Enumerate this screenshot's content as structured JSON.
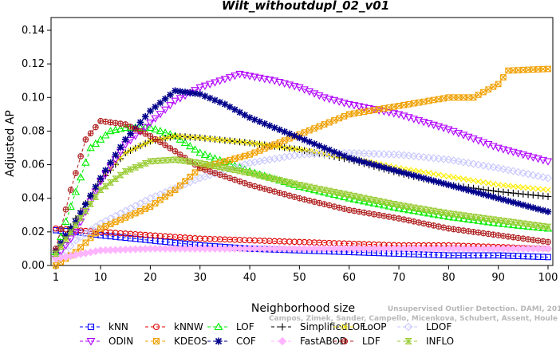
{
  "chart_data": {
    "type": "line",
    "title": "Wilt_withoutdupl_02_v01",
    "xlabel": "Neighborhood size",
    "ylabel": "Adjusted AP",
    "xlim": [
      1,
      100
    ],
    "ylim": [
      0,
      0.14
    ],
    "xticks": [
      1,
      10,
      20,
      30,
      40,
      50,
      60,
      70,
      80,
      90,
      100
    ],
    "yticks": [
      "0.00",
      "0.02",
      "0.04",
      "0.06",
      "0.08",
      "0.10",
      "0.12",
      "0.14"
    ],
    "watermark": [
      "Campos, Zimek, Sander, Campello, Micenkova, Schubert, Assent, Houle",
      "Unsupervised Outlier Detection. DAMI, 2015."
    ],
    "series": [
      {
        "name": "kNN",
        "color": "#0000ff",
        "marker": "square",
        "points": [
          [
            1,
            0.021
          ],
          [
            5,
            0.02
          ],
          [
            10,
            0.018
          ],
          [
            20,
            0.015
          ],
          [
            30,
            0.012
          ],
          [
            40,
            0.01
          ],
          [
            50,
            0.009
          ],
          [
            60,
            0.008
          ],
          [
            70,
            0.007
          ],
          [
            80,
            0.006
          ],
          [
            90,
            0.006
          ],
          [
            100,
            0.005
          ]
        ]
      },
      {
        "name": "kNNW",
        "color": "#e00000",
        "marker": "circle",
        "points": [
          [
            1,
            0.022
          ],
          [
            5,
            0.021
          ],
          [
            10,
            0.02
          ],
          [
            20,
            0.018
          ],
          [
            30,
            0.016
          ],
          [
            40,
            0.015
          ],
          [
            50,
            0.014
          ],
          [
            60,
            0.013
          ],
          [
            70,
            0.012
          ],
          [
            80,
            0.012
          ],
          [
            90,
            0.011
          ],
          [
            100,
            0.01
          ]
        ]
      },
      {
        "name": "LOF",
        "color": "#00ee00",
        "marker": "triangle",
        "points": [
          [
            1,
            0.008
          ],
          [
            4,
            0.035
          ],
          [
            8,
            0.07
          ],
          [
            12,
            0.08
          ],
          [
            15,
            0.082
          ],
          [
            20,
            0.082
          ],
          [
            25,
            0.077
          ],
          [
            30,
            0.067
          ],
          [
            40,
            0.056
          ],
          [
            50,
            0.047
          ],
          [
            60,
            0.04
          ],
          [
            70,
            0.034
          ],
          [
            80,
            0.029
          ],
          [
            90,
            0.025
          ],
          [
            100,
            0.022
          ]
        ]
      },
      {
        "name": "SimplifiedLOF",
        "color": "#000000",
        "marker": "plus",
        "points": [
          [
            1,
            0.008
          ],
          [
            5,
            0.028
          ],
          [
            10,
            0.05
          ],
          [
            15,
            0.067
          ],
          [
            20,
            0.074
          ],
          [
            25,
            0.077
          ],
          [
            30,
            0.076
          ],
          [
            40,
            0.073
          ],
          [
            50,
            0.069
          ],
          [
            60,
            0.063
          ],
          [
            70,
            0.055
          ],
          [
            80,
            0.048
          ],
          [
            90,
            0.044
          ],
          [
            100,
            0.041
          ]
        ]
      },
      {
        "name": "LoOP",
        "color": "#ffee00",
        "marker": "x",
        "points": [
          [
            1,
            0.007
          ],
          [
            5,
            0.026
          ],
          [
            10,
            0.052
          ],
          [
            15,
            0.067
          ],
          [
            20,
            0.074
          ],
          [
            25,
            0.077
          ],
          [
            30,
            0.076
          ],
          [
            40,
            0.073
          ],
          [
            50,
            0.069
          ],
          [
            60,
            0.064
          ],
          [
            70,
            0.058
          ],
          [
            80,
            0.053
          ],
          [
            90,
            0.048
          ],
          [
            100,
            0.045
          ]
        ]
      },
      {
        "name": "LDOF",
        "color": "#c8c8ff",
        "marker": "diamond",
        "points": [
          [
            1,
            0.002
          ],
          [
            5,
            0.015
          ],
          [
            10,
            0.025
          ],
          [
            20,
            0.04
          ],
          [
            30,
            0.052
          ],
          [
            40,
            0.061
          ],
          [
            50,
            0.066
          ],
          [
            60,
            0.067
          ],
          [
            70,
            0.066
          ],
          [
            80,
            0.063
          ],
          [
            90,
            0.058
          ],
          [
            100,
            0.052
          ]
        ]
      },
      {
        "name": "ODIN",
        "color": "#b000ff",
        "marker": "triangle-down",
        "points": [
          [
            1,
            0.004
          ],
          [
            5,
            0.02
          ],
          [
            10,
            0.05
          ],
          [
            15,
            0.072
          ],
          [
            20,
            0.085
          ],
          [
            25,
            0.098
          ],
          [
            30,
            0.106
          ],
          [
            38,
            0.114
          ],
          [
            45,
            0.11
          ],
          [
            50,
            0.106
          ],
          [
            55,
            0.1
          ],
          [
            60,
            0.096
          ],
          [
            70,
            0.09
          ],
          [
            80,
            0.081
          ],
          [
            90,
            0.07
          ],
          [
            100,
            0.062
          ]
        ]
      },
      {
        "name": "KDEOS",
        "color": "#f0a000",
        "marker": "square-x",
        "points": [
          [
            1,
            0.0
          ],
          [
            5,
            0.008
          ],
          [
            10,
            0.022
          ],
          [
            20,
            0.035
          ],
          [
            25,
            0.045
          ],
          [
            30,
            0.058
          ],
          [
            40,
            0.066
          ],
          [
            50,
            0.078
          ],
          [
            60,
            0.09
          ],
          [
            70,
            0.095
          ],
          [
            80,
            0.1
          ],
          [
            85,
            0.1
          ],
          [
            90,
            0.108
          ],
          [
            92,
            0.116
          ],
          [
            100,
            0.117
          ]
        ]
      },
      {
        "name": "COF",
        "color": "#00008b",
        "marker": "star",
        "points": [
          [
            1,
            0.009
          ],
          [
            5,
            0.026
          ],
          [
            10,
            0.052
          ],
          [
            15,
            0.075
          ],
          [
            20,
            0.092
          ],
          [
            25,
            0.104
          ],
          [
            30,
            0.102
          ],
          [
            35,
            0.096
          ],
          [
            40,
            0.088
          ],
          [
            50,
            0.076
          ],
          [
            60,
            0.064
          ],
          [
            70,
            0.056
          ],
          [
            80,
            0.048
          ],
          [
            90,
            0.04
          ],
          [
            100,
            0.032
          ]
        ]
      },
      {
        "name": "FastABOD",
        "color": "#ffb4ff",
        "marker": "diamond-filled",
        "points": [
          [
            1,
            0.004
          ],
          [
            10,
            0.009
          ],
          [
            20,
            0.01
          ],
          [
            30,
            0.01
          ],
          [
            40,
            0.01
          ],
          [
            50,
            0.01
          ],
          [
            60,
            0.01
          ],
          [
            70,
            0.01
          ],
          [
            80,
            0.01
          ],
          [
            90,
            0.01
          ],
          [
            100,
            0.01
          ]
        ]
      },
      {
        "name": "LDF",
        "color": "#b02020",
        "marker": "circle-plus",
        "points": [
          [
            1,
            0.01
          ],
          [
            4,
            0.045
          ],
          [
            7,
            0.075
          ],
          [
            10,
            0.086
          ],
          [
            15,
            0.084
          ],
          [
            20,
            0.077
          ],
          [
            25,
            0.068
          ],
          [
            30,
            0.058
          ],
          [
            40,
            0.048
          ],
          [
            50,
            0.04
          ],
          [
            60,
            0.033
          ],
          [
            70,
            0.028
          ],
          [
            80,
            0.022
          ],
          [
            90,
            0.018
          ],
          [
            100,
            0.014
          ]
        ]
      },
      {
        "name": "INFLO",
        "color": "#99cc33",
        "marker": "hourglass",
        "points": [
          [
            1,
            0.007
          ],
          [
            5,
            0.024
          ],
          [
            10,
            0.045
          ],
          [
            15,
            0.056
          ],
          [
            20,
            0.062
          ],
          [
            25,
            0.063
          ],
          [
            30,
            0.061
          ],
          [
            40,
            0.055
          ],
          [
            50,
            0.048
          ],
          [
            60,
            0.042
          ],
          [
            70,
            0.036
          ],
          [
            80,
            0.031
          ],
          [
            90,
            0.027
          ],
          [
            100,
            0.023
          ]
        ]
      }
    ]
  }
}
